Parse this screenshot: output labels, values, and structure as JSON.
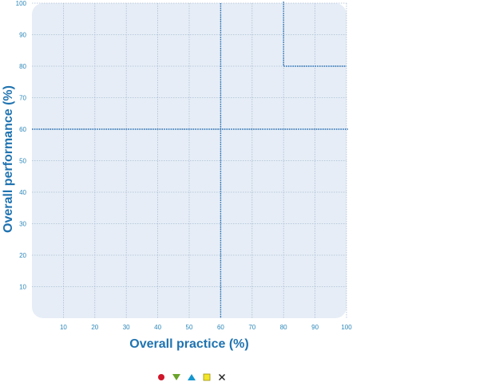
{
  "chart_data": {
    "type": "scatter",
    "title": "",
    "xlabel": "Overall practice (%)",
    "ylabel": "Overall performance (%)",
    "xlim": [
      0,
      100
    ],
    "ylim": [
      0,
      100
    ],
    "x_ticks": [
      10,
      20,
      30,
      40,
      50,
      60,
      70,
      80,
      90,
      100
    ],
    "y_ticks": [
      10,
      20,
      30,
      40,
      50,
      60,
      70,
      80,
      90,
      100
    ],
    "grid": true,
    "series": [],
    "reference_lines": {
      "vertical_full": 60,
      "horizontal_full": 60,
      "corner_box": {
        "x_from": 80,
        "y_from": 80
      }
    },
    "legend": {
      "placement": "bottom-center",
      "markers": [
        {
          "shape": "circle",
          "color": "#d0162a"
        },
        {
          "shape": "triangle-down",
          "color": "#6aa32a"
        },
        {
          "shape": "triangle-up",
          "color": "#1496cf"
        },
        {
          "shape": "square",
          "color": "#f2e52a"
        },
        {
          "shape": "cross",
          "color": "#222222"
        }
      ]
    },
    "colors": {
      "plot_background": "#e6edf6",
      "grid": "#a9bdd4",
      "reference_line": "#2a72b5",
      "tick_text": "#2a86b8",
      "axis_title": "#1f73b0"
    }
  }
}
